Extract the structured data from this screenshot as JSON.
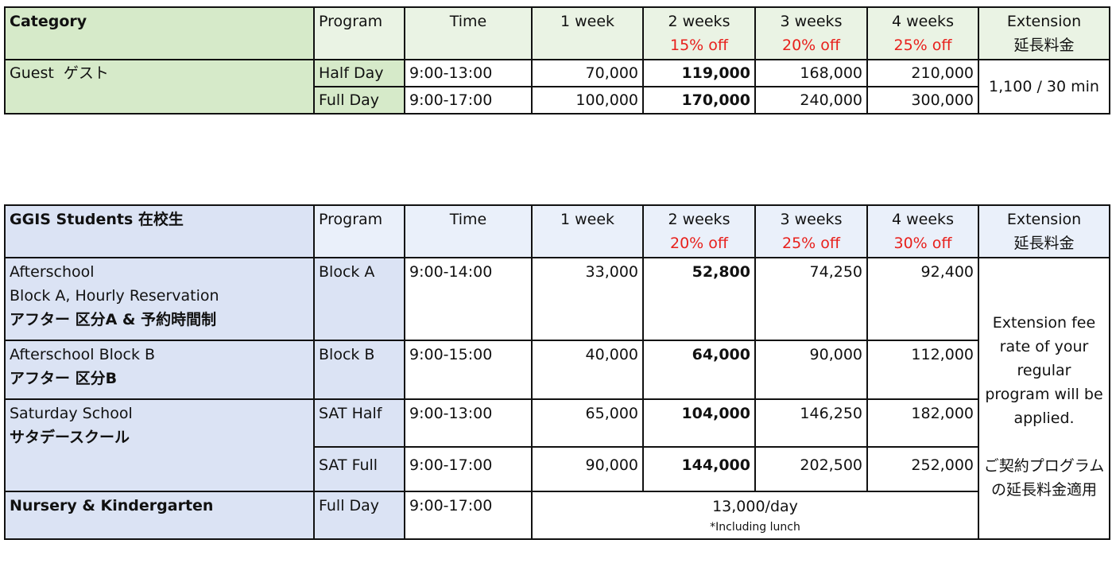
{
  "guest_table": {
    "headers": {
      "category": "Category",
      "program": "Program",
      "time": "Time",
      "w1": "1 week",
      "w2": "2 weeks",
      "w2_off": "15% off",
      "w3": "3 weeks",
      "w3_off": "20% off",
      "w4": "4 weeks",
      "w4_off": "25% off",
      "ext": "Extension",
      "ext_jp": "延長料金"
    },
    "category": "Guest  ゲスト",
    "rows": [
      {
        "program": "Half Day",
        "time": "9:00-13:00",
        "w1": "70,000",
        "w2": "119,000",
        "w3": "168,000",
        "w4": "210,000"
      },
      {
        "program": "Full Day",
        "time": "9:00-17:00",
        "w1": "100,000",
        "w2": "170,000",
        "w3": "240,000",
        "w4": "300,000"
      }
    ],
    "extension": "1,100 / 30 min"
  },
  "student_table": {
    "headers": {
      "category": "GGIS Students 在校生",
      "program": "Program",
      "time": "Time",
      "w1": "1 week",
      "w2": "2 weeks",
      "w2_off": "20% off",
      "w3": "3 weeks",
      "w3_off": "25% off",
      "w4": "4 weeks",
      "w4_off": "30% off",
      "ext": "Extension",
      "ext_jp": "延長料金"
    },
    "rows": [
      {
        "cat1": "Afterschool",
        "cat2": "Block A, Hourly Reservation",
        "cat3": "アフター 区分A & 予約時間制",
        "program": "Block A",
        "time": "9:00-14:00",
        "w1": "33,000",
        "w2": "52,800",
        "w3": "74,250",
        "w4": "92,400"
      },
      {
        "cat1": "Afterschool Block B",
        "cat2": "アフター 区分B",
        "program": "Block B",
        "time": "9:00-15:00",
        "w1": "40,000",
        "w2": "64,000",
        "w3": "90,000",
        "w4": "112,000"
      },
      {
        "cat1": "Saturday School",
        "cat2": "サタデースクール",
        "program": "SAT Half",
        "time": "9:00-13:00",
        "w1": "65,000",
        "w2": "104,000",
        "w3": "146,250",
        "w4": "182,000"
      },
      {
        "program": "SAT Full",
        "time": "9:00-17:00",
        "w1": "90,000",
        "w2": "144,000",
        "w3": "202,500",
        "w4": "252,000"
      }
    ],
    "nursery": {
      "cat": "Nursery & Kindergarten",
      "program": "Full Day",
      "time": "9:00-17:00",
      "price": "13,000/day",
      "note": "*Including lunch"
    },
    "extension_en": "Extension fee rate of your regular program will be applied.",
    "extension_jp": "ご契約プログラムの延長料金適用"
  }
}
